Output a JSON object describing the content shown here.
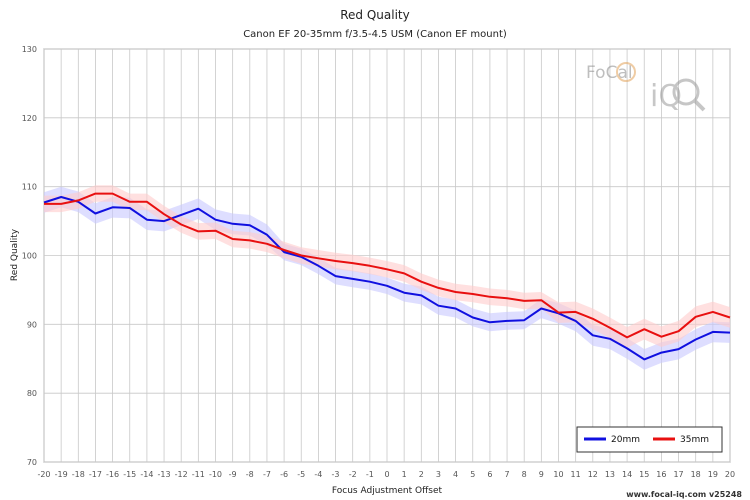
{
  "chart_data": {
    "type": "line",
    "title": "Red Quality",
    "subtitle": "Canon EF 20-35mm f/3.5-4.5 USM (Canon EF mount)",
    "xlabel": "Focus Adjustment Offset",
    "ylabel": "Red Quality",
    "xlim": [
      -20,
      20
    ],
    "ylim": [
      70,
      130
    ],
    "x_ticks": [
      -20,
      -19,
      -18,
      -17,
      -16,
      -15,
      -14,
      -13,
      -12,
      -11,
      -10,
      -9,
      -8,
      -7,
      -6,
      -5,
      -4,
      -3,
      -2,
      -1,
      0,
      1,
      2,
      3,
      4,
      5,
      6,
      7,
      8,
      9,
      10,
      11,
      12,
      13,
      14,
      15,
      16,
      17,
      18,
      19,
      20
    ],
    "y_ticks": [
      70,
      80,
      90,
      100,
      110,
      120,
      130
    ],
    "grid": true,
    "legend_position": "bottom-right",
    "x": [
      -20,
      -19,
      -18,
      -17,
      -16,
      -15,
      -14,
      -13,
      -12,
      -11,
      -10,
      -9,
      -8,
      -7,
      -6,
      -5,
      -4,
      -3,
      -2,
      -1,
      0,
      1,
      2,
      3,
      4,
      5,
      6,
      7,
      8,
      9,
      10,
      11,
      12,
      13,
      14,
      15,
      16,
      17,
      18,
      19,
      20
    ],
    "series": [
      {
        "name": "20mm",
        "color": "#1010e0",
        "band_color": "#c8c8ff",
        "values": [
          107.7,
          108.5,
          107.8,
          106.1,
          107.0,
          106.9,
          105.2,
          105.0,
          105.9,
          106.8,
          105.2,
          104.6,
          104.4,
          103.0,
          100.5,
          99.8,
          98.5,
          97.0,
          96.6,
          96.2,
          95.6,
          94.6,
          94.2,
          92.7,
          92.3,
          91.0,
          90.3,
          90.5,
          90.6,
          92.3,
          91.6,
          90.5,
          88.4,
          87.9,
          86.5,
          84.9,
          85.9,
          86.4,
          87.8,
          88.9,
          88.8
        ],
        "band": [
          1.5,
          1.5,
          1.5,
          1.5,
          1.5,
          1.5,
          1.5,
          1.5,
          1.5,
          1.5,
          1.5,
          1.5,
          1.5,
          1.5,
          1.2,
          1.2,
          1.2,
          1.2,
          1.2,
          1.2,
          1.2,
          1.3,
          1.3,
          1.3,
          1.3,
          1.3,
          1.3,
          1.3,
          1.3,
          1.4,
          1.5,
          1.5,
          1.5,
          1.5,
          1.5,
          1.5,
          1.5,
          1.5,
          1.5,
          1.5,
          1.5
        ]
      },
      {
        "name": "35mm",
        "color": "#e81010",
        "band_color": "#ffcccc",
        "values": [
          107.5,
          107.5,
          108.0,
          109.0,
          109.0,
          107.8,
          107.8,
          106.0,
          104.5,
          103.5,
          103.6,
          102.4,
          102.2,
          101.7,
          100.8,
          100.0,
          99.6,
          99.2,
          98.9,
          98.5,
          98.0,
          97.4,
          96.2,
          95.3,
          94.7,
          94.4,
          94.0,
          93.8,
          93.4,
          93.5,
          91.7,
          91.8,
          90.8,
          89.5,
          88.1,
          89.3,
          88.2,
          89.0,
          91.1,
          91.8,
          91.0
        ],
        "band": [
          1.2,
          1.2,
          1.2,
          1.2,
          1.2,
          1.2,
          1.2,
          1.2,
          1.2,
          1.2,
          1.2,
          1.2,
          1.2,
          1.2,
          1.2,
          1.2,
          1.2,
          1.2,
          1.2,
          1.2,
          1.2,
          1.2,
          1.2,
          1.2,
          1.2,
          1.2,
          1.2,
          1.2,
          1.2,
          1.2,
          1.5,
          1.5,
          1.5,
          1.5,
          1.5,
          1.5,
          1.5,
          1.5,
          1.5,
          1.5,
          1.5
        ]
      }
    ]
  },
  "watermark": {
    "text_part1": "FoCal",
    "text_part2": "iQ"
  },
  "footer": {
    "text": "www.focal-iq.com v25248"
  }
}
